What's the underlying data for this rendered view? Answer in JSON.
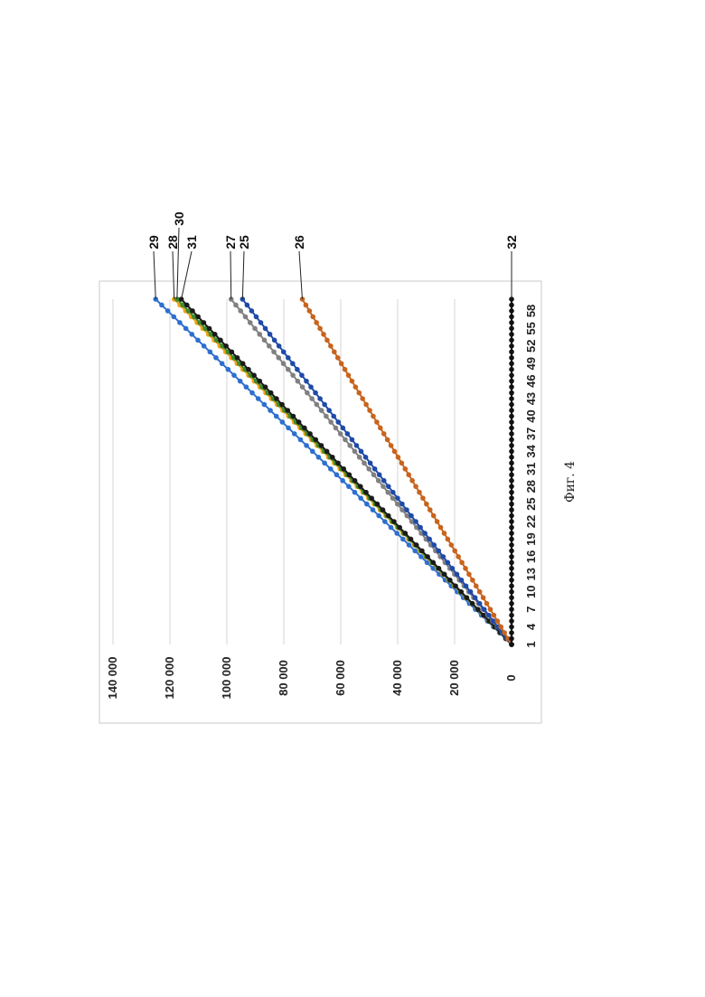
{
  "caption": "Фиг. 4",
  "chart_data": {
    "type": "line",
    "rotated": "90-degrees-counterclockwise",
    "x": [
      1,
      60
    ],
    "x_tick_labels": [
      "1",
      "4",
      "7",
      "10",
      "13",
      "16",
      "19",
      "22",
      "25",
      "28",
      "31",
      "34",
      "37",
      "40",
      "43",
      "46",
      "49",
      "52",
      "55",
      "58"
    ],
    "y_tick_labels": [
      "0",
      "20 000",
      "40 000",
      "60 000",
      "80 000",
      "100 000",
      "120 000",
      "140 000"
    ],
    "ylim": [
      0,
      140000
    ],
    "grid": "horizontal",
    "series": [
      {
        "name": "29",
        "color": "#2e6fcf",
        "start": 0,
        "end": 125000
      },
      {
        "name": "28",
        "color": "#f2a21a",
        "start": 0,
        "end": 118500
      },
      {
        "name": "30",
        "color": "#3f8a2c",
        "start": 0,
        "end": 117500
      },
      {
        "name": "31",
        "color": "#1a1a1a",
        "start": 0,
        "end": 116000
      },
      {
        "name": "27",
        "color": "#808080",
        "start": 0,
        "end": 98500
      },
      {
        "name": "25",
        "color": "#1f4aa8",
        "start": 0,
        "end": 94500
      },
      {
        "name": "26",
        "color": "#c8641e",
        "start": 0,
        "end": 73500
      },
      {
        "name": "32",
        "color": "#111111",
        "start": 0,
        "end": 0
      }
    ]
  }
}
